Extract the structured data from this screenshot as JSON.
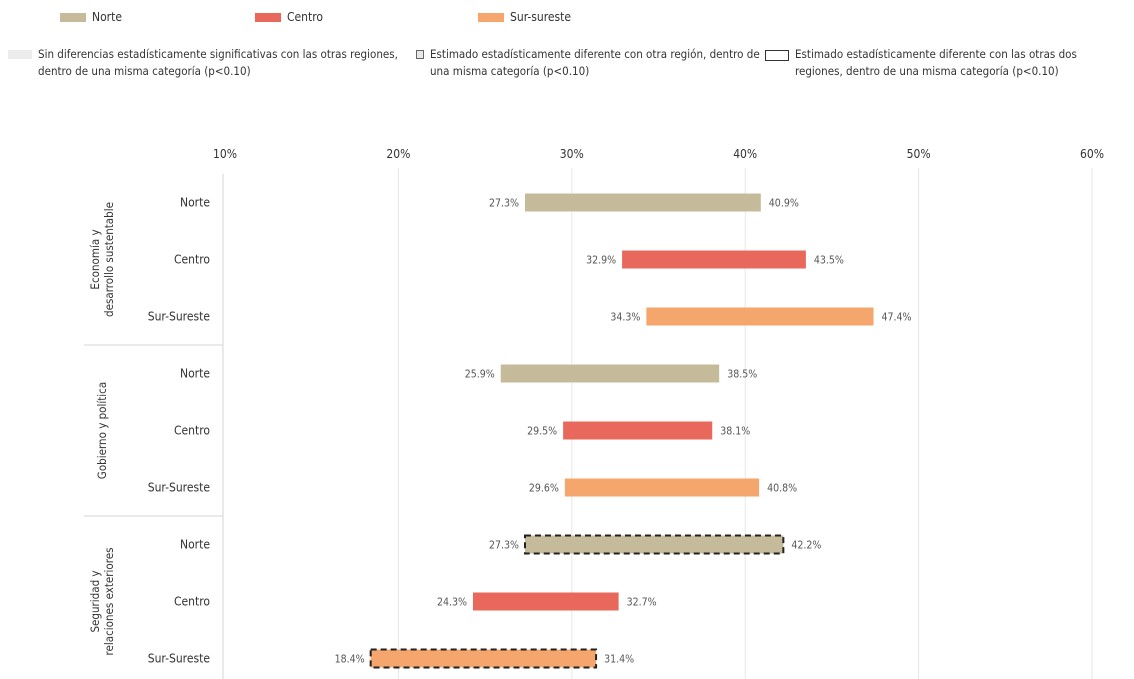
{
  "legend": {
    "series": [
      {
        "label": "Norte",
        "color": "#c5bb9a"
      },
      {
        "label": "Centro",
        "color": "#e8695c"
      },
      {
        "label": "Sur-sureste",
        "color": "#f4a66c"
      }
    ],
    "significance": [
      {
        "label": "Sin diferencias estadísticamente significativas con las otras regiones, dentro de una misma categoría (p<0.10)",
        "style": "light-gray"
      },
      {
        "label": "Estimado estadísticamente diferente con otra región, dentro de una misma categoría (p<0.10)",
        "style": "gray-box"
      },
      {
        "label": "Estimado estadísticamente diferente con las otras dos regiones, dentro de una misma categoría (p<0.10)",
        "style": "dashed-box"
      }
    ]
  },
  "chart_data": {
    "type": "bar",
    "subtype": "floating-range",
    "x_ticks": [
      "10%",
      "20%",
      "30%",
      "40%",
      "50%",
      "60%"
    ],
    "xlim": [
      10,
      60
    ],
    "grid": true,
    "legend_position": "top",
    "groups": [
      {
        "label": "Economía y desarrollo sustentable",
        "rows": [
          {
            "label": "Norte",
            "region": "Norte",
            "low": 27.3,
            "high": 40.9,
            "low_label": "27.3%",
            "high_label": "40.9%",
            "significance": "none"
          },
          {
            "label": "Centro",
            "region": "Centro",
            "low": 32.9,
            "high": 43.5,
            "low_label": "32.9%",
            "high_label": "43.5%",
            "significance": "none"
          },
          {
            "label": "Sur-Sureste",
            "region": "Sur-sureste",
            "low": 34.3,
            "high": 47.4,
            "low_label": "34.3%",
            "high_label": "47.4%",
            "significance": "none"
          }
        ]
      },
      {
        "label": "Gobierno y política",
        "rows": [
          {
            "label": "Norte",
            "region": "Norte",
            "low": 25.9,
            "high": 38.5,
            "low_label": "25.9%",
            "high_label": "38.5%",
            "significance": "none"
          },
          {
            "label": "Centro",
            "region": "Centro",
            "low": 29.5,
            "high": 38.1,
            "low_label": "29.5%",
            "high_label": "38.1%",
            "significance": "none"
          },
          {
            "label": "Sur-Sureste",
            "region": "Sur-sureste",
            "low": 29.6,
            "high": 40.8,
            "low_label": "29.6%",
            "high_label": "40.8%",
            "significance": "none"
          }
        ]
      },
      {
        "label": "Seguridad y relaciones exteriores",
        "rows": [
          {
            "label": "Norte",
            "region": "Norte",
            "low": 27.3,
            "high": 42.2,
            "low_label": "27.3%",
            "high_label": "42.2%",
            "significance": "both"
          },
          {
            "label": "Centro",
            "region": "Centro",
            "low": 24.3,
            "high": 32.7,
            "low_label": "24.3%",
            "high_label": "32.7%",
            "significance": "none"
          },
          {
            "label": "Sur-Sureste",
            "region": "Sur-sureste",
            "low": 18.4,
            "high": 31.4,
            "low_label": "18.4%",
            "high_label": "31.4%",
            "significance": "both"
          }
        ]
      }
    ]
  }
}
